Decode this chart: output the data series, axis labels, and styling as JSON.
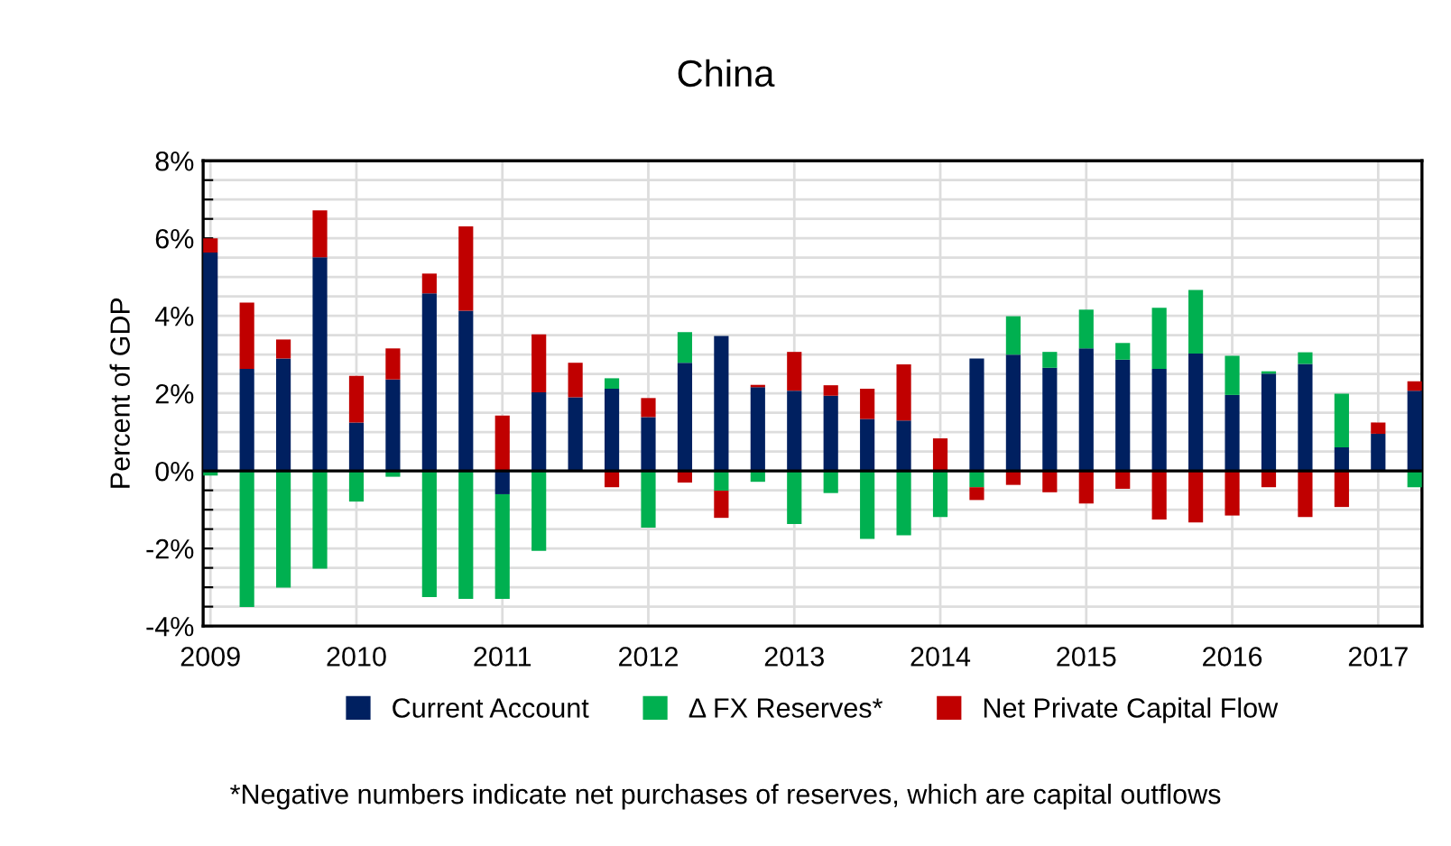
{
  "chart_data": {
    "type": "bar",
    "stacked": true,
    "title": "China",
    "ylabel": "Percent of GDP",
    "x": [
      2009.0,
      2009.25,
      2009.5,
      2009.75,
      2010.0,
      2010.25,
      2010.5,
      2010.75,
      2011.0,
      2011.25,
      2011.5,
      2011.75,
      2012.0,
      2012.25,
      2012.5,
      2012.75,
      2013.0,
      2013.25,
      2013.5,
      2013.75,
      2014.0,
      2014.25,
      2014.5,
      2014.75,
      2015.0,
      2015.25,
      2015.5,
      2015.75,
      2016.0,
      2016.25,
      2016.5,
      2016.75,
      2017.0,
      2017.25
    ],
    "series": [
      {
        "name": "Current Account",
        "color": "#002060",
        "values": [
          5.63,
          2.63,
          2.9,
          5.51,
          1.25,
          2.36,
          4.58,
          4.13,
          -0.6,
          2.03,
          1.9,
          2.12,
          1.39,
          2.79,
          3.48,
          2.16,
          2.07,
          1.94,
          1.34,
          1.3,
          null,
          2.9,
          3.0,
          2.66,
          3.16,
          2.87,
          2.63,
          3.03,
          1.96,
          2.51,
          2.76,
          0.61,
          0.96,
          2.07
        ]
      },
      {
        "name": "Δ FX Reserves*",
        "color": "#00b050",
        "values": [
          -0.12,
          -3.51,
          -3.01,
          -2.52,
          -0.79,
          -0.15,
          -3.25,
          -3.3,
          -2.7,
          -2.06,
          0,
          0.27,
          -1.46,
          0.79,
          -0.51,
          -0.28,
          -1.37,
          -0.57,
          -1.75,
          -1.66,
          -1.19,
          -0.42,
          0.99,
          0.41,
          1.0,
          0.43,
          1.58,
          1.64,
          1.01,
          0.06,
          0.3,
          1.38,
          0,
          -0.42
        ]
      },
      {
        "name": "Net Private Capital Flow",
        "color": "#c00000",
        "values": [
          0.37,
          1.71,
          0.49,
          1.21,
          1.2,
          0.8,
          0.51,
          2.18,
          1.43,
          1.49,
          0.89,
          -0.42,
          0.49,
          -0.3,
          -0.7,
          0.06,
          1.0,
          0.27,
          0.78,
          1.45,
          0.84,
          -0.33,
          -0.36,
          -0.55,
          -0.84,
          -0.46,
          -1.25,
          -1.33,
          -1.15,
          -0.42,
          -1.19,
          -0.93,
          0.29,
          0.24
        ]
      }
    ],
    "xlim": [
      2008.95,
      2017.3
    ],
    "xticks": [
      2009,
      2010,
      2011,
      2012,
      2013,
      2014,
      2015,
      2016,
      2017
    ],
    "ylim": [
      -4,
      8
    ],
    "yticks": [
      {
        "value": -4,
        "label": "-4%"
      },
      {
        "value": -3.5,
        "label": null
      },
      {
        "value": -3,
        "label": null
      },
      {
        "value": -2.5,
        "label": null
      },
      {
        "value": -2,
        "label": "-2%"
      },
      {
        "value": -1.5,
        "label": null
      },
      {
        "value": -1,
        "label": null
      },
      {
        "value": -0.5,
        "label": null
      },
      {
        "value": 0,
        "label": "0%"
      },
      {
        "value": 0.5,
        "label": null
      },
      {
        "value": 1,
        "label": null
      },
      {
        "value": 1.5,
        "label": null
      },
      {
        "value": 2,
        "label": "2%"
      },
      {
        "value": 2.5,
        "label": null
      },
      {
        "value": 3,
        "label": null
      },
      {
        "value": 3.5,
        "label": null
      },
      {
        "value": 4,
        "label": "4%"
      },
      {
        "value": 4.5,
        "label": null
      },
      {
        "value": 5,
        "label": null
      },
      {
        "value": 5.5,
        "label": null
      },
      {
        "value": 6,
        "label": "6%"
      },
      {
        "value": 6.5,
        "label": null
      },
      {
        "value": 7,
        "label": null
      },
      {
        "value": 7.5,
        "label": null
      },
      {
        "value": 8,
        "label": "8%"
      }
    ],
    "grid": true,
    "legend": "bottom",
    "annotations": [
      "*Negative numbers indicate net purchases of reserves, which are capital outflows"
    ]
  }
}
